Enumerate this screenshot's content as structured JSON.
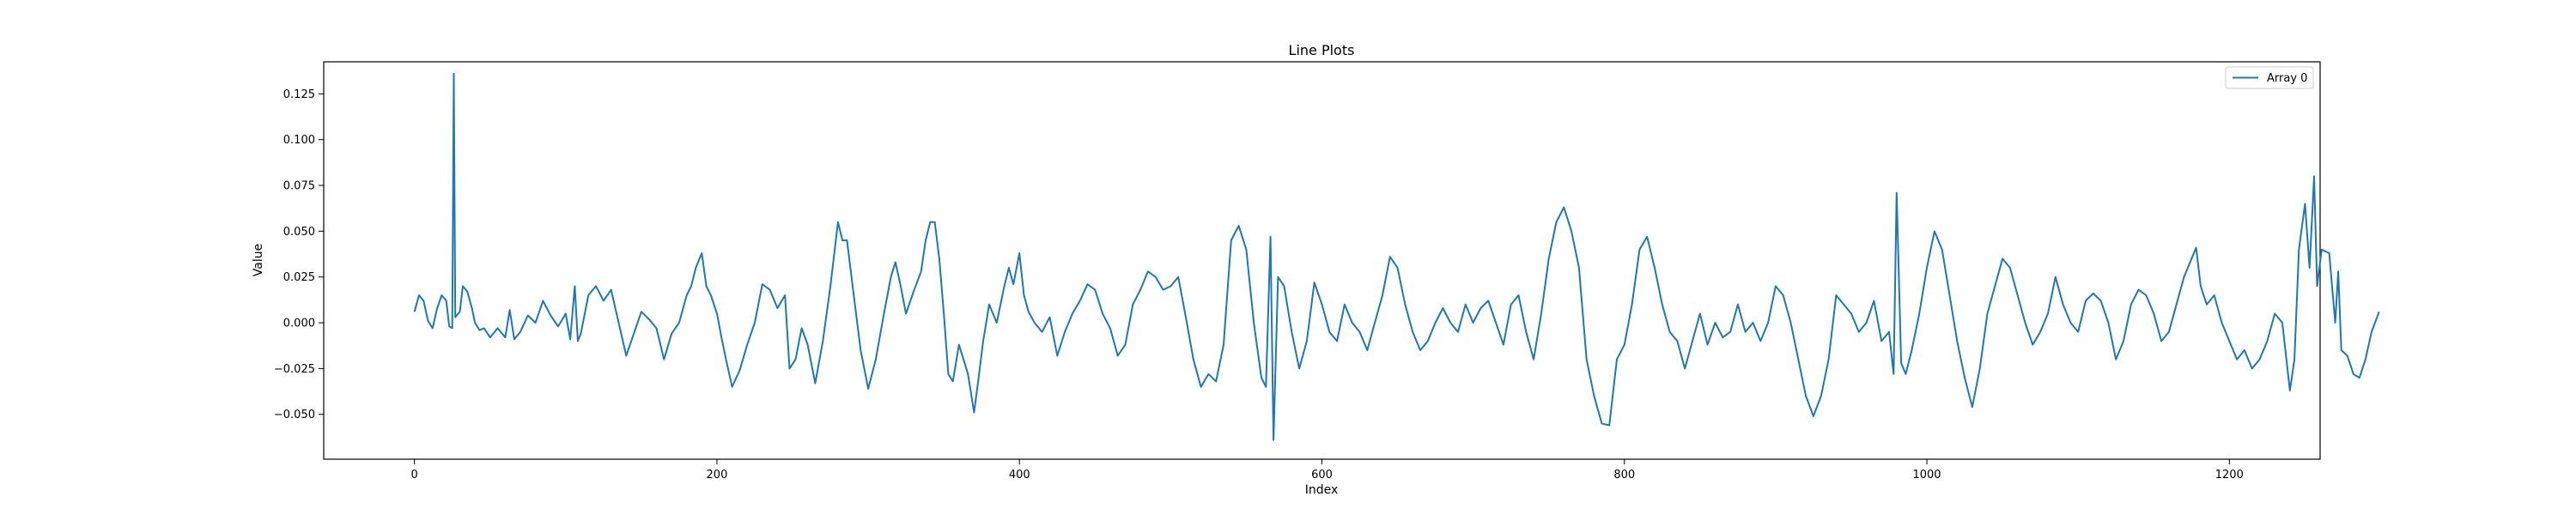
{
  "chart_data": {
    "type": "line",
    "title": "Line Plots",
    "xlabel": "Index",
    "ylabel": "Value",
    "xlim": [
      -60,
      1260
    ],
    "ylim": [
      -0.0745,
      0.1425
    ],
    "xticks": [
      0,
      200,
      400,
      600,
      800,
      1000,
      1200
    ],
    "yticks": [
      -0.05,
      -0.025,
      0.0,
      0.025,
      0.05,
      0.075,
      0.1,
      0.125
    ],
    "ytick_labels": [
      "−0.050",
      "−0.025",
      "0.000",
      "0.025",
      "0.050",
      "0.075",
      "0.100",
      "0.125"
    ],
    "legend": {
      "position": "top-right"
    },
    "grid": false,
    "series": [
      {
        "name": "Array 0",
        "color": "#1f77b4",
        "points": [
          [
            0,
            0.006
          ],
          [
            3,
            0.015
          ],
          [
            6,
            0.012
          ],
          [
            9,
            0.001
          ],
          [
            12,
            -0.003
          ],
          [
            15,
            0.008
          ],
          [
            18,
            0.015
          ],
          [
            21,
            0.012
          ],
          [
            23,
            -0.002
          ],
          [
            25,
            -0.003
          ],
          [
            26,
            0.136
          ],
          [
            27,
            0.003
          ],
          [
            30,
            0.006
          ],
          [
            32,
            0.02
          ],
          [
            35,
            0.017
          ],
          [
            38,
            0.008
          ],
          [
            40,
            0.0
          ],
          [
            43,
            -0.004
          ],
          [
            46,
            -0.003
          ],
          [
            50,
            -0.008
          ],
          [
            55,
            -0.003
          ],
          [
            60,
            -0.008
          ],
          [
            63,
            0.007
          ],
          [
            66,
            -0.009
          ],
          [
            70,
            -0.005
          ],
          [
            75,
            0.004
          ],
          [
            80,
            0.0
          ],
          [
            85,
            0.012
          ],
          [
            90,
            0.004
          ],
          [
            95,
            -0.002
          ],
          [
            100,
            0.005
          ],
          [
            103,
            -0.009
          ],
          [
            106,
            0.02
          ],
          [
            108,
            -0.01
          ],
          [
            110,
            -0.006
          ],
          [
            115,
            0.015
          ],
          [
            120,
            0.02
          ],
          [
            125,
            0.012
          ],
          [
            130,
            0.018
          ],
          [
            135,
            0.0
          ],
          [
            140,
            -0.018
          ],
          [
            145,
            -0.006
          ],
          [
            150,
            0.006
          ],
          [
            155,
            0.002
          ],
          [
            160,
            -0.003
          ],
          [
            165,
            -0.02
          ],
          [
            170,
            -0.006
          ],
          [
            175,
            0.0
          ],
          [
            180,
            0.015
          ],
          [
            183,
            0.02
          ],
          [
            186,
            0.03
          ],
          [
            190,
            0.038
          ],
          [
            193,
            0.02
          ],
          [
            196,
            0.015
          ],
          [
            200,
            0.005
          ],
          [
            203,
            -0.008
          ],
          [
            206,
            -0.02
          ],
          [
            210,
            -0.035
          ],
          [
            215,
            -0.026
          ],
          [
            220,
            -0.012
          ],
          [
            225,
            0.0
          ],
          [
            230,
            0.021
          ],
          [
            235,
            0.018
          ],
          [
            240,
            0.008
          ],
          [
            245,
            0.015
          ],
          [
            248,
            -0.025
          ],
          [
            252,
            -0.02
          ],
          [
            256,
            -0.003
          ],
          [
            260,
            -0.012
          ],
          [
            265,
            -0.033
          ],
          [
            270,
            -0.01
          ],
          [
            275,
            0.02
          ],
          [
            280,
            0.055
          ],
          [
            283,
            0.045
          ],
          [
            286,
            0.045
          ],
          [
            290,
            0.018
          ],
          [
            295,
            -0.015
          ],
          [
            300,
            -0.036
          ],
          [
            305,
            -0.02
          ],
          [
            310,
            0.003
          ],
          [
            315,
            0.025
          ],
          [
            318,
            0.033
          ],
          [
            321,
            0.022
          ],
          [
            325,
            0.005
          ],
          [
            330,
            0.017
          ],
          [
            335,
            0.028
          ],
          [
            338,
            0.045
          ],
          [
            341,
            0.055
          ],
          [
            344,
            0.055
          ],
          [
            347,
            0.035
          ],
          [
            350,
            0.005
          ],
          [
            353,
            -0.028
          ],
          [
            356,
            -0.032
          ],
          [
            360,
            -0.012
          ],
          [
            363,
            -0.02
          ],
          [
            366,
            -0.028
          ],
          [
            370,
            -0.049
          ],
          [
            373,
            -0.03
          ],
          [
            376,
            -0.01
          ],
          [
            380,
            0.01
          ],
          [
            385,
            0.0
          ],
          [
            390,
            0.02
          ],
          [
            393,
            0.03
          ],
          [
            396,
            0.021
          ],
          [
            400,
            0.038
          ],
          [
            403,
            0.015
          ],
          [
            406,
            0.006
          ],
          [
            410,
            0.0
          ],
          [
            415,
            -0.005
          ],
          [
            420,
            0.003
          ],
          [
            425,
            -0.018
          ],
          [
            430,
            -0.005
          ],
          [
            435,
            0.005
          ],
          [
            440,
            0.012
          ],
          [
            445,
            0.021
          ],
          [
            450,
            0.018
          ],
          [
            455,
            0.005
          ],
          [
            460,
            -0.003
          ],
          [
            465,
            -0.018
          ],
          [
            470,
            -0.012
          ],
          [
            475,
            0.01
          ],
          [
            480,
            0.018
          ],
          [
            485,
            0.028
          ],
          [
            490,
            0.025
          ],
          [
            495,
            0.018
          ],
          [
            500,
            0.02
          ],
          [
            505,
            0.025
          ],
          [
            510,
            0.003
          ],
          [
            515,
            -0.02
          ],
          [
            520,
            -0.035
          ],
          [
            525,
            -0.028
          ],
          [
            530,
            -0.032
          ],
          [
            535,
            -0.012
          ],
          [
            540,
            0.045
          ],
          [
            545,
            0.053
          ],
          [
            550,
            0.04
          ],
          [
            555,
            0.0
          ],
          [
            560,
            -0.03
          ],
          [
            563,
            -0.035
          ],
          [
            566,
            0.047
          ],
          [
            568,
            -0.064
          ],
          [
            571,
            0.025
          ],
          [
            575,
            0.02
          ],
          [
            580,
            -0.005
          ],
          [
            585,
            -0.025
          ],
          [
            590,
            -0.01
          ],
          [
            595,
            0.022
          ],
          [
            600,
            0.01
          ],
          [
            605,
            -0.005
          ],
          [
            610,
            -0.01
          ],
          [
            615,
            0.01
          ],
          [
            620,
            0.0
          ],
          [
            625,
            -0.005
          ],
          [
            630,
            -0.015
          ],
          [
            635,
            0.0
          ],
          [
            640,
            0.015
          ],
          [
            645,
            0.036
          ],
          [
            650,
            0.03
          ],
          [
            655,
            0.01
          ],
          [
            660,
            -0.005
          ],
          [
            665,
            -0.015
          ],
          [
            670,
            -0.01
          ],
          [
            675,
            0.0
          ],
          [
            680,
            0.008
          ],
          [
            685,
            0.0
          ],
          [
            690,
            -0.005
          ],
          [
            695,
            0.01
          ],
          [
            700,
            0.0
          ],
          [
            705,
            0.008
          ],
          [
            710,
            0.012
          ],
          [
            715,
            0.0
          ],
          [
            720,
            -0.012
          ],
          [
            725,
            0.01
          ],
          [
            730,
            0.015
          ],
          [
            735,
            -0.005
          ],
          [
            740,
            -0.02
          ],
          [
            745,
            0.005
          ],
          [
            750,
            0.035
          ],
          [
            755,
            0.055
          ],
          [
            760,
            0.063
          ],
          [
            765,
            0.05
          ],
          [
            770,
            0.03
          ],
          [
            775,
            -0.02
          ],
          [
            780,
            -0.04
          ],
          [
            785,
            -0.055
          ],
          [
            790,
            -0.056
          ],
          [
            795,
            -0.02
          ],
          [
            800,
            -0.012
          ],
          [
            805,
            0.01
          ],
          [
            810,
            0.04
          ],
          [
            815,
            0.047
          ],
          [
            820,
            0.03
          ],
          [
            825,
            0.01
          ],
          [
            830,
            -0.005
          ],
          [
            835,
            -0.01
          ],
          [
            840,
            -0.025
          ],
          [
            845,
            -0.01
          ],
          [
            850,
            0.005
          ],
          [
            855,
            -0.012
          ],
          [
            860,
            0.0
          ],
          [
            865,
            -0.008
          ],
          [
            870,
            -0.005
          ],
          [
            875,
            0.01
          ],
          [
            880,
            -0.005
          ],
          [
            885,
            0.0
          ],
          [
            890,
            -0.01
          ],
          [
            895,
            0.0
          ],
          [
            900,
            0.02
          ],
          [
            905,
            0.015
          ],
          [
            910,
            0.0
          ],
          [
            915,
            -0.02
          ],
          [
            920,
            -0.04
          ],
          [
            925,
            -0.051
          ],
          [
            930,
            -0.04
          ],
          [
            935,
            -0.02
          ],
          [
            940,
            0.015
          ],
          [
            945,
            0.01
          ],
          [
            950,
            0.005
          ],
          [
            955,
            -0.005
          ],
          [
            960,
            0.0
          ],
          [
            965,
            0.012
          ],
          [
            970,
            -0.01
          ],
          [
            975,
            -0.005
          ],
          [
            978,
            -0.028
          ],
          [
            980,
            0.071
          ],
          [
            983,
            -0.022
          ],
          [
            986,
            -0.028
          ],
          [
            990,
            -0.015
          ],
          [
            995,
            0.005
          ],
          [
            1000,
            0.03
          ],
          [
            1005,
            0.05
          ],
          [
            1010,
            0.04
          ],
          [
            1015,
            0.015
          ],
          [
            1020,
            -0.01
          ],
          [
            1025,
            -0.03
          ],
          [
            1030,
            -0.046
          ],
          [
            1035,
            -0.025
          ],
          [
            1040,
            0.005
          ],
          [
            1045,
            0.02
          ],
          [
            1050,
            0.035
          ],
          [
            1055,
            0.03
          ],
          [
            1060,
            0.015
          ],
          [
            1065,
            0.0
          ],
          [
            1070,
            -0.012
          ],
          [
            1075,
            -0.005
          ],
          [
            1080,
            0.005
          ],
          [
            1085,
            0.025
          ],
          [
            1090,
            0.01
          ],
          [
            1095,
            0.0
          ],
          [
            1100,
            -0.005
          ],
          [
            1105,
            0.012
          ],
          [
            1110,
            0.016
          ],
          [
            1115,
            0.012
          ],
          [
            1120,
            0.0
          ],
          [
            1125,
            -0.02
          ],
          [
            1130,
            -0.01
          ],
          [
            1135,
            0.01
          ],
          [
            1140,
            0.018
          ],
          [
            1145,
            0.015
          ],
          [
            1150,
            0.005
          ],
          [
            1155,
            -0.01
          ],
          [
            1160,
            -0.005
          ],
          [
            1165,
            0.01
          ],
          [
            1170,
            0.025
          ],
          [
            1175,
            0.035
          ],
          [
            1178,
            0.041
          ],
          [
            1181,
            0.02
          ],
          [
            1185,
            0.01
          ],
          [
            1190,
            0.015
          ],
          [
            1195,
            0.0
          ],
          [
            1200,
            -0.01
          ],
          [
            1205,
            -0.02
          ],
          [
            1210,
            -0.015
          ],
          [
            1215,
            -0.025
          ],
          [
            1220,
            -0.02
          ],
          [
            1225,
            -0.01
          ],
          [
            1230,
            0.005
          ],
          [
            1235,
            0.0
          ],
          [
            1240,
            -0.037
          ],
          [
            1243,
            -0.02
          ],
          [
            1246,
            0.04
          ],
          [
            1250,
            0.065
          ],
          [
            1253,
            0.03
          ],
          [
            1256,
            0.08
          ],
          [
            1258,
            0.02
          ],
          [
            1261,
            0.04
          ],
          [
            1266,
            0.038
          ],
          [
            1270,
            0.0
          ],
          [
            1272,
            0.028
          ],
          [
            1274,
            -0.015
          ],
          [
            1278,
            -0.018
          ],
          [
            1282,
            -0.028
          ],
          [
            1286,
            -0.03
          ],
          [
            1290,
            -0.02
          ],
          [
            1294,
            -0.005
          ],
          [
            1299,
            0.006
          ]
        ]
      }
    ]
  }
}
